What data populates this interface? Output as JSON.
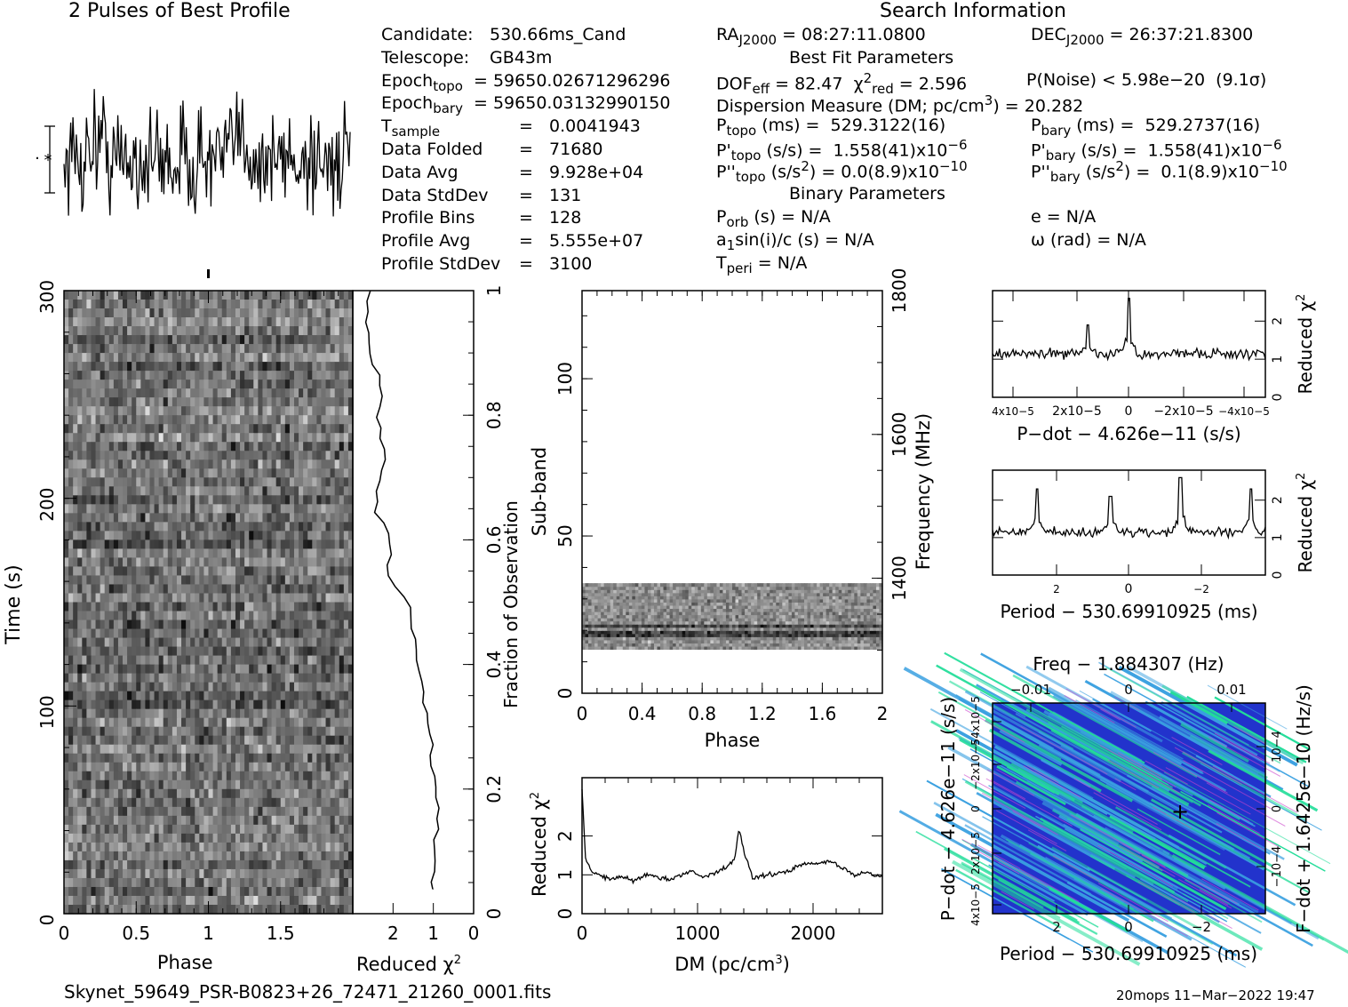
{
  "header": {
    "profile_title": "2 Pulses of Best Profile",
    "search_title": "Search Information",
    "best_fit_title": "Best Fit Parameters",
    "binary_title": "Binary Parameters"
  },
  "info_left": [
    {
      "label": "Candidate:",
      "value": "530.66ms_Cand"
    },
    {
      "label": "Telescope:",
      "value": "GB43m"
    },
    {
      "label": "Epoch",
      "sub": "topo",
      "value": "= 59650.02671296296"
    },
    {
      "label": "Epoch",
      "sub": "bary",
      "value": "= 59650.03132990150"
    },
    {
      "label": "T",
      "sub": "sample",
      "value": "=   0.0041943"
    },
    {
      "label": "Data Folded",
      "value": "=   71680"
    },
    {
      "label": "Data Avg",
      "value": "=   9.928e+04"
    },
    {
      "label": "Data StdDev",
      "value": "=   131"
    },
    {
      "label": "Profile Bins",
      "value": "=   128"
    },
    {
      "label": "Profile Avg",
      "value": "=   5.555e+07"
    },
    {
      "label": "Profile StdDev",
      "value": "=   3100"
    }
  ],
  "info_mid": {
    "ra": "RA",
    "ra_sub": "J2000",
    "ra_val": " = 08:27:11.0800",
    "dec": "DEC",
    "dec_sub": "J2000",
    "dec_val": " = 26:37:21.8300",
    "dof": "DOF",
    "dof_sub": "eff",
    "dof_val": " = 82.47",
    "chi": "χ",
    "chi_sup": "2",
    "chi_sub": "red",
    "chi_val": " = 2.596",
    "pnoise": "P(Noise) < 5.98e−20  (9.1σ)",
    "dm_line": "Dispersion Measure (DM; pc/cm",
    "dm_sup": "3",
    "dm_val": ") = 20.282",
    "ptopo": "P",
    "ptopo_sub": "topo",
    "ptopo_val": " (ms) =  529.3122(16)",
    "pbary": "P",
    "pbary_sub": "bary",
    "pbary_val": " (ms) =  529.2737(16)",
    "pdtopo": "P'",
    "pdtopo_sub": "topo",
    "pdtopo_val": " (s/s) =  1.558(41)x10",
    "pdtopo_exp": "−6",
    "pdbary": "P'",
    "pdbary_sub": "bary",
    "pdbary_val": " (s/s) =  1.558(41)x10",
    "pdbary_exp": "−6",
    "pddtopo": "P''",
    "pddtopo_sub": "topo",
    "pddtopo_val": " (s/s",
    "pddtopo_sup": "2",
    "pddtopo_val2": ") = 0.0(8.9)x10",
    "pddtopo_exp": "−10",
    "pddbary": "P''",
    "pddbary_sub": "bary",
    "pddbary_val": " (s/s",
    "pddbary_sup": "2",
    "pddbary_val2": ") =  0.1(8.9)x10",
    "pddbary_exp": "−10",
    "porb": "P",
    "porb_sub": "orb",
    "porb_val": " (s) = N/A",
    "ecc": "e = N/A",
    "asini": "a",
    "asini_sub": "1",
    "asini_val": "sin(i)/c (s) = N/A",
    "omega": "ω (rad) = N/A",
    "tperi": "T",
    "tperi_sub": "peri",
    "tperi_val": " = N/A"
  },
  "footer": {
    "filename": "Skynet_59649_PSR-B0823+26_72471_21260_0001.fits",
    "stamp": "20mops 11−Mar−2022 19:47"
  },
  "colors": {
    "ink": "#000000",
    "pp_bg": "#2233cc",
    "pp_hi": "#22dd99"
  },
  "chart_data": [
    {
      "name": "pulse-profile",
      "type": "line",
      "title": "2 Pulses of Best Profile",
      "x_range": [
        0,
        2
      ],
      "description_bins": 256
    },
    {
      "name": "time-phase",
      "type": "heatmap",
      "xlabel": "Phase",
      "ylabel": "Time (s)",
      "xticks": [
        "0",
        "0.5",
        "1",
        "1.5"
      ],
      "xlim": [
        0,
        2
      ],
      "yticks": [
        "0",
        "100",
        "200",
        "300"
      ],
      "ylim": [
        0,
        300
      ]
    },
    {
      "name": "reduced-chi2-vs-time",
      "type": "line",
      "xlabel": "Reduced χ",
      "xlabel_sup": "2",
      "xticks": [
        "2",
        "1",
        "0"
      ],
      "xlim": [
        3,
        0
      ],
      "ylabel_right": "Fraction of Observation",
      "yticks": [
        "0",
        "0.2",
        "0.4",
        "0.6",
        "0.8",
        "1"
      ],
      "x": [
        0.05,
        0.15,
        0.2,
        0.3,
        0.4,
        0.5,
        0.55,
        0.6,
        0.65,
        0.7,
        0.75,
        0.8,
        0.85,
        0.9,
        0.95,
        1.0
      ],
      "y": [
        1.0,
        0.9,
        0.95,
        1.1,
        1.4,
        1.6,
        2.2,
        2.0,
        2.5,
        2.3,
        2.2,
        2.4,
        2.3,
        2.5,
        2.7,
        2.6
      ]
    },
    {
      "name": "subband-phase",
      "type": "heatmap",
      "xlabel": "Phase",
      "ylabel": "Sub-band",
      "ylabel_right": "Frequency (MHz)",
      "xticks": [
        "0",
        "0.4",
        "0.8",
        "1.2",
        "1.6",
        "2"
      ],
      "xlim": [
        0,
        2
      ],
      "yticks": [
        "0",
        "50",
        "100"
      ],
      "ylim": [
        0,
        128
      ],
      "rticks": [
        "1400",
        "1600",
        "1800"
      ],
      "band_rows": [
        14,
        35
      ]
    },
    {
      "name": "dm-chi2",
      "type": "line",
      "xlabel": "DM (pc/cm",
      "xlabel_sup": "3",
      "xlabel_end": ")",
      "ylabel": "Reduced χ",
      "ylabel_sup": "2",
      "xticks": [
        "0",
        "1000",
        "2000"
      ],
      "xlim": [
        0,
        2600
      ],
      "yticks": [
        "0",
        "1",
        "2"
      ],
      "ylim": [
        0,
        3.5
      ],
      "x": [
        0,
        30,
        80,
        150,
        250,
        350,
        450,
        550,
        650,
        750,
        850,
        950,
        1050,
        1150,
        1250,
        1320,
        1360,
        1400,
        1440,
        1480,
        1550,
        1650,
        1750,
        1850,
        1950,
        2050,
        2150,
        2250,
        2350,
        2450,
        2600
      ],
      "y": [
        3.2,
        1.4,
        1.1,
        1.0,
        0.9,
        0.95,
        0.85,
        1.0,
        0.95,
        0.85,
        1.0,
        1.1,
        0.95,
        1.05,
        1.2,
        1.4,
        2.2,
        1.6,
        1.3,
        0.9,
        1.0,
        1.0,
        1.05,
        1.2,
        1.3,
        1.3,
        1.35,
        1.2,
        1.0,
        1.05,
        0.95
      ]
    },
    {
      "name": "pdot-chi2",
      "type": "line",
      "xlabel": "P−dot − 4.626e−11 (s/s)",
      "ylabel_right": "Reduced χ",
      "ylabel_sup": "2",
      "xticks": [
        "4x10−5",
        "2x10−5",
        "0",
        "−2x10−5",
        "−4x10−5"
      ],
      "yticks": [
        "0",
        "1",
        "2"
      ],
      "ylim": [
        0,
        2.8
      ],
      "peaks": [
        {
          "x": 0,
          "y": 2.6
        },
        {
          "x": 1.5,
          "y": 1.9
        }
      ]
    },
    {
      "name": "period-chi2",
      "type": "line",
      "xlabel": "Period − 530.69910925 (ms)",
      "ylabel_right": "Reduced χ",
      "ylabel_sup": "2",
      "xticks": [
        "2",
        "0",
        "−2"
      ],
      "yticks": [
        "0",
        "1",
        "2"
      ],
      "ylim": [
        0,
        2.8
      ],
      "peaks": [
        {
          "x": 2.5,
          "y": 2.3
        },
        {
          "x": 0.5,
          "y": 2.1
        },
        {
          "x": -1.4,
          "y": 2.6
        },
        {
          "x": -3.3,
          "y": 2.3
        }
      ]
    },
    {
      "name": "period-pdot",
      "type": "heatmap",
      "top_label": "Freq − 1.884307 (Hz)",
      "top_ticks": [
        "−0.01",
        "0",
        "0.01"
      ],
      "xlabel": "Period − 530.69910925 (ms)",
      "xticks": [
        "2",
        "0",
        "−2"
      ],
      "ylabel": "P−dot − 4.626e−11 (s/s)",
      "yticks": [
        "4x10−5",
        "2x10−5",
        "0",
        "−2x10−5",
        "−4x10−5"
      ],
      "ylabel_right": "F−dot + 1.6425e−10 (Hz/s)",
      "rticks": [
        "10−4",
        "0",
        "−10−4"
      ],
      "best": {
        "x": -1.4,
        "y": 0
      }
    }
  ]
}
